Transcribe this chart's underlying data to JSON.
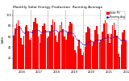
{
  "title": "Monthly Solar Energy Production  Running Average",
  "title_fontsize": 3.2,
  "background_color": "#ffffff",
  "bar_color": "#ff0000",
  "avg_color": "#0000cc",
  "grid_color": "#888888",
  "ylabel": "kWh",
  "ylabel_fontsize": 3.0,
  "ylim": [
    0,
    110
  ],
  "yticks": [
    20,
    40,
    60,
    80,
    100
  ],
  "legend_bar_label": "Solar PV",
  "legend_line_label": "Running Avg",
  "months_per_year": 12,
  "bar_values": [
    62,
    75,
    85,
    90,
    80,
    58,
    45,
    62,
    78,
    82,
    70,
    55,
    58,
    72,
    88,
    95,
    85,
    60,
    48,
    65,
    80,
    85,
    72,
    58,
    60,
    70,
    82,
    92,
    88,
    62,
    50,
    68,
    82,
    88,
    74,
    60,
    55,
    68,
    80,
    88,
    84,
    60,
    35,
    30,
    42,
    55,
    38,
    25,
    30,
    40,
    68,
    78,
    75,
    55,
    42,
    50,
    72,
    80,
    65,
    50,
    55,
    70,
    84,
    90,
    86,
    65,
    48,
    65,
    82,
    86,
    73,
    62,
    28,
    22,
    45,
    68,
    72,
    52
  ],
  "running_avg": [
    62,
    68,
    74,
    78,
    78,
    75,
    70,
    67,
    68,
    70,
    70,
    69,
    68,
    68,
    70,
    72,
    73,
    72,
    70,
    68,
    69,
    70,
    70,
    70,
    70,
    70,
    70,
    71,
    72,
    72,
    70,
    69,
    70,
    71,
    71,
    71,
    70,
    69,
    68,
    67,
    67,
    66,
    62,
    56,
    53,
    53,
    50,
    47,
    45,
    45,
    47,
    49,
    51,
    51,
    51,
    51,
    53,
    54,
    54,
    54,
    54,
    55,
    57,
    58,
    59,
    59,
    58,
    58,
    59,
    60,
    60,
    61,
    58,
    55,
    53,
    53,
    54,
    54
  ],
  "n_years": 7,
  "year_labels": [
    "2016",
    "2017",
    "2018",
    "2019",
    "2020",
    "2021",
    "2022"
  ],
  "tick_fontsize": 2.5
}
